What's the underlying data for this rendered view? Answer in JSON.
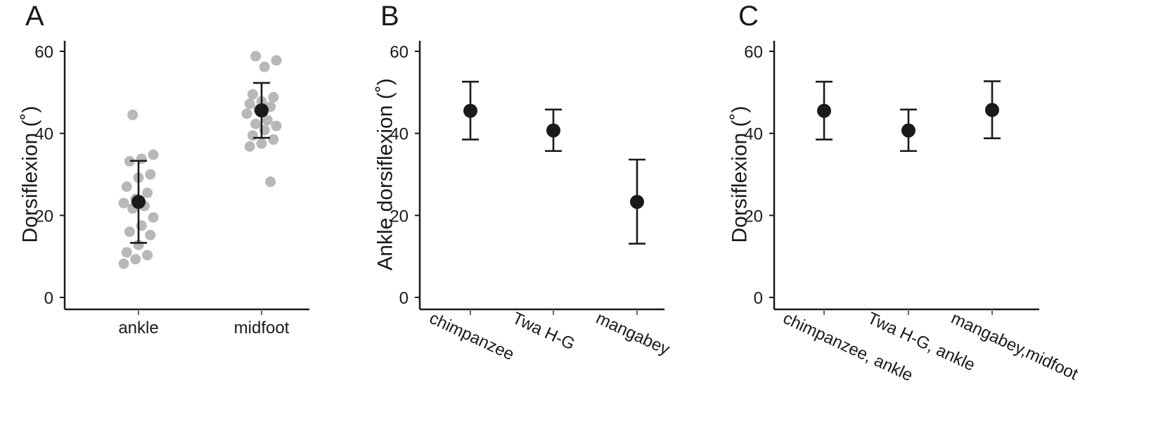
{
  "chart_data": [
    {
      "panel": "A",
      "type": "scatter",
      "ylabel": "Dorsiflexion (˚)",
      "ylim": [
        0,
        60
      ],
      "yticks": [
        0,
        20,
        40,
        60
      ],
      "categories": [
        "ankle",
        "midfoot"
      ],
      "summary": [
        {
          "category": "ankle",
          "mean": 23.3,
          "lower": 13.3,
          "upper": 33.3
        },
        {
          "category": "midfoot",
          "mean": 45.6,
          "lower": 38.9,
          "upper": 52.3
        }
      ],
      "raw_points": [
        {
          "category": "ankle",
          "values": [
            44.5,
            34.8,
            33.8,
            33.2,
            30.0,
            29.2,
            27.0,
            25.5,
            24.0,
            23.0,
            22.3,
            21.7,
            19.5,
            17.5,
            16.0,
            15.2,
            12.8,
            11.0,
            10.3,
            9.3,
            8.2
          ]
        },
        {
          "category": "midfoot",
          "values": [
            58.8,
            57.8,
            56.2,
            49.5,
            48.8,
            47.8,
            47.2,
            46.5,
            45.8,
            44.8,
            43.2,
            42.3,
            41.8,
            40.8,
            39.5,
            38.5,
            37.5,
            36.8,
            28.2
          ]
        }
      ]
    },
    {
      "panel": "B",
      "type": "scatter",
      "ylabel": "Ankle dorsiflexion (˚)",
      "ylim": [
        0,
        60
      ],
      "yticks": [
        0,
        20,
        40,
        60
      ],
      "categories": [
        "chimpanzee",
        "Twa H-G",
        "mangabey"
      ],
      "summary": [
        {
          "category": "chimpanzee",
          "mean": 45.5,
          "lower": 38.5,
          "upper": 52.6
        },
        {
          "category": "Twa H-G",
          "mean": 40.7,
          "lower": 35.7,
          "upper": 45.8
        },
        {
          "category": "mangabey",
          "mean": 23.3,
          "lower": 13.1,
          "upper": 33.6
        }
      ]
    },
    {
      "panel": "C",
      "type": "scatter",
      "ylabel": "Dorsiflexion (˚)",
      "ylim": [
        0,
        60
      ],
      "yticks": [
        0,
        20,
        40,
        60
      ],
      "categories": [
        "chimpanzee, ankle",
        "Twa H-G, ankle",
        "mangabey,midfoot"
      ],
      "summary": [
        {
          "category": "chimpanzee, ankle",
          "mean": 45.5,
          "lower": 38.5,
          "upper": 52.6
        },
        {
          "category": "Twa H-G, ankle",
          "mean": 40.7,
          "lower": 35.7,
          "upper": 45.8
        },
        {
          "category": "mangabey,midfoot",
          "mean": 45.7,
          "lower": 38.8,
          "upper": 52.7
        }
      ]
    }
  ]
}
